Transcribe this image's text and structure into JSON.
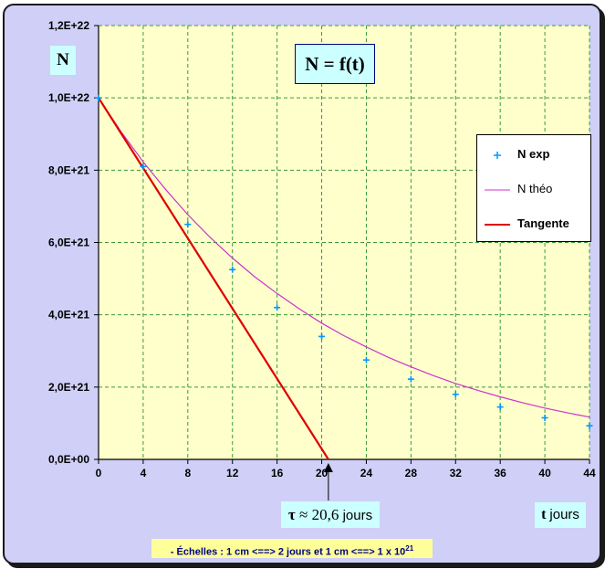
{
  "title": "N = f(t)",
  "y_axis_label": "N",
  "x_axis_label": {
    "symbol": "t",
    "unit": "jours"
  },
  "tau_annotation": {
    "symbol": "τ",
    "approx": "≈ 20,6",
    "unit": "jours",
    "value": 20.6
  },
  "scale_note": "- Échelles : 1  cm <==> 2 jours et 1 cm <==> 1 x 10",
  "scale_note_exponent": "21",
  "chart_data": {
    "type": "scatter",
    "title": "N = f(t)",
    "xlabel": "t jours",
    "ylabel": "N",
    "xlim": [
      0,
      44
    ],
    "ylim": [
      0,
      1.2e+22
    ],
    "xticks": [
      0,
      4,
      8,
      12,
      16,
      20,
      24,
      28,
      32,
      36,
      40,
      44
    ],
    "yticks": [
      0,
      2e+21,
      4e+21,
      6e+21,
      8e+21,
      1e+22,
      1.2e+22
    ],
    "ytick_labels": [
      "0,0E+00",
      "2,0E+21",
      "4,0E+21",
      "6,0E+21",
      "8,0E+21",
      "1,0E+22",
      "1,2E+22"
    ],
    "grid": true,
    "legend_position": "right",
    "series": [
      {
        "name": "N exp",
        "kind": "points",
        "color": "#0099ff",
        "x": [
          0,
          4,
          8,
          12,
          16,
          20,
          24,
          28,
          32,
          36,
          40,
          44
        ],
        "y": [
          1e+22,
          8.1e+21,
          6.5e+21,
          5.25e+21,
          4.2e+21,
          3.4e+21,
          2.75e+21,
          2.22e+21,
          1.8e+21,
          1.45e+21,
          1.15e+21,
          9.3e+20
        ]
      },
      {
        "name": "N théo",
        "kind": "curve",
        "color": "#cc33cc",
        "x": [
          0,
          2,
          4,
          6,
          8,
          10,
          12,
          14,
          16,
          18,
          20,
          22,
          24,
          26,
          28,
          30,
          32,
          34,
          36,
          38,
          40,
          42,
          44
        ],
        "y": [
          1e+22,
          9.07e+21,
          8.23e+21,
          7.47e+21,
          6.77e+21,
          6.14e+21,
          5.57e+21,
          5.05e+21,
          4.59e+21,
          4.16e+21,
          3.77e+21,
          3.42e+21,
          3.11e+21,
          2.82e+21,
          2.56e+21,
          2.32e+21,
          2.1e+21,
          1.91e+21,
          1.73e+21,
          1.57e+21,
          1.42e+21,
          1.29e+21,
          1.17e+21
        ]
      },
      {
        "name": "Tangente",
        "kind": "line",
        "color": "#dd0000",
        "x": [
          0,
          20.6
        ],
        "y": [
          1e+22,
          0
        ]
      }
    ]
  }
}
